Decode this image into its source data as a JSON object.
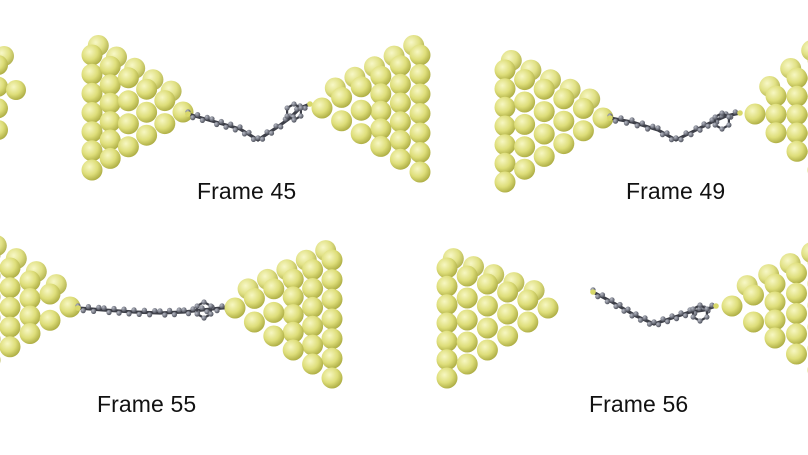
{
  "figure": {
    "colors": {
      "background": "#ffffff",
      "gold_atom": "#dede7a",
      "gold_atom_shadow": "#b4b446",
      "molecule_atom": "#6a6d7a",
      "molecule_bond": "#3d3f48",
      "linker_atom": "#d8d86a"
    },
    "frames": [
      {
        "label": "Frame 45"
      },
      {
        "label": "Frame 49"
      },
      {
        "label": "Frame 55"
      },
      {
        "label": "Frame 56"
      }
    ]
  }
}
